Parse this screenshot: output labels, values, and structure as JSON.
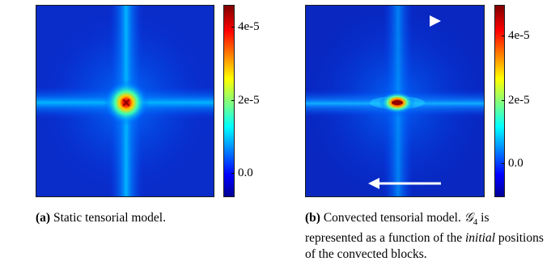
{
  "chart_data": [
    {
      "type": "heatmap",
      "panel_label": "(a)",
      "caption": "Static tensorial model.",
      "colorscale": "jet",
      "colorbar": {
        "ticks": [
          "4e-5",
          "2e-5",
          "0.0"
        ],
        "range": [
          -5e-06,
          4.6e-05
        ]
      },
      "peak": "centered cross",
      "arrows": []
    },
    {
      "type": "heatmap",
      "panel_label": "(b)",
      "caption_parts": [
        "Convected tensorial model. ",
        "𝒢",
        "4",
        " is represented as a function of the ",
        "initial",
        " positions of the convected blocks."
      ],
      "colorscale": "jet",
      "colorbar": {
        "ticks": [
          "4e-5",
          "2e-5",
          "0.0"
        ],
        "range": [
          -5e-06,
          4.6e-05
        ]
      },
      "peak": "horizontally elongated",
      "arrows": [
        "right",
        "left"
      ]
    }
  ],
  "colors": {
    "jet": [
      "#00008f",
      "#0000ff",
      "#00ffff",
      "#ffff00",
      "#ff0000",
      "#800000"
    ],
    "arrow": "#ffffff"
  }
}
